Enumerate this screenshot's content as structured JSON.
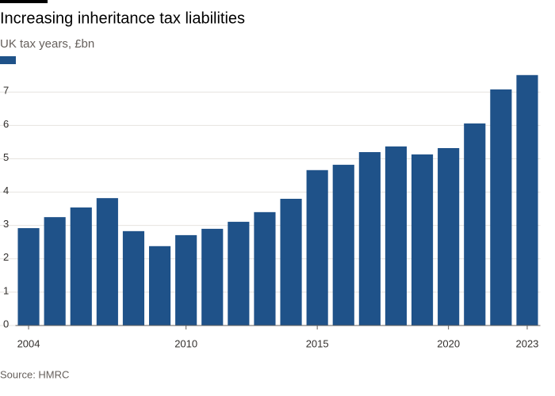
{
  "chart_data": {
    "type": "bar",
    "title": "Increasing inheritance tax liabilities",
    "subtitle": "UK tax years, £bn",
    "source": "Source: HMRC",
    "x": [
      2004,
      2005,
      2006,
      2007,
      2008,
      2009,
      2010,
      2011,
      2012,
      2013,
      2014,
      2015,
      2016,
      2017,
      2018,
      2019,
      2020,
      2021,
      2022,
      2023
    ],
    "values": [
      2.92,
      3.25,
      3.54,
      3.82,
      2.83,
      2.38,
      2.71,
      2.9,
      3.11,
      3.4,
      3.8,
      4.66,
      4.82,
      5.2,
      5.37,
      5.13,
      5.32,
      6.06,
      7.08,
      7.51
    ],
    "color": "#1f5289",
    "xlim": [
      2003.5,
      2023.5
    ],
    "xticks": [
      2004,
      2010,
      2015,
      2020,
      2023
    ],
    "ylim": [
      0,
      7.6
    ],
    "yticks": [
      0,
      1,
      2,
      3,
      4,
      5,
      6,
      7
    ],
    "grid": true
  }
}
